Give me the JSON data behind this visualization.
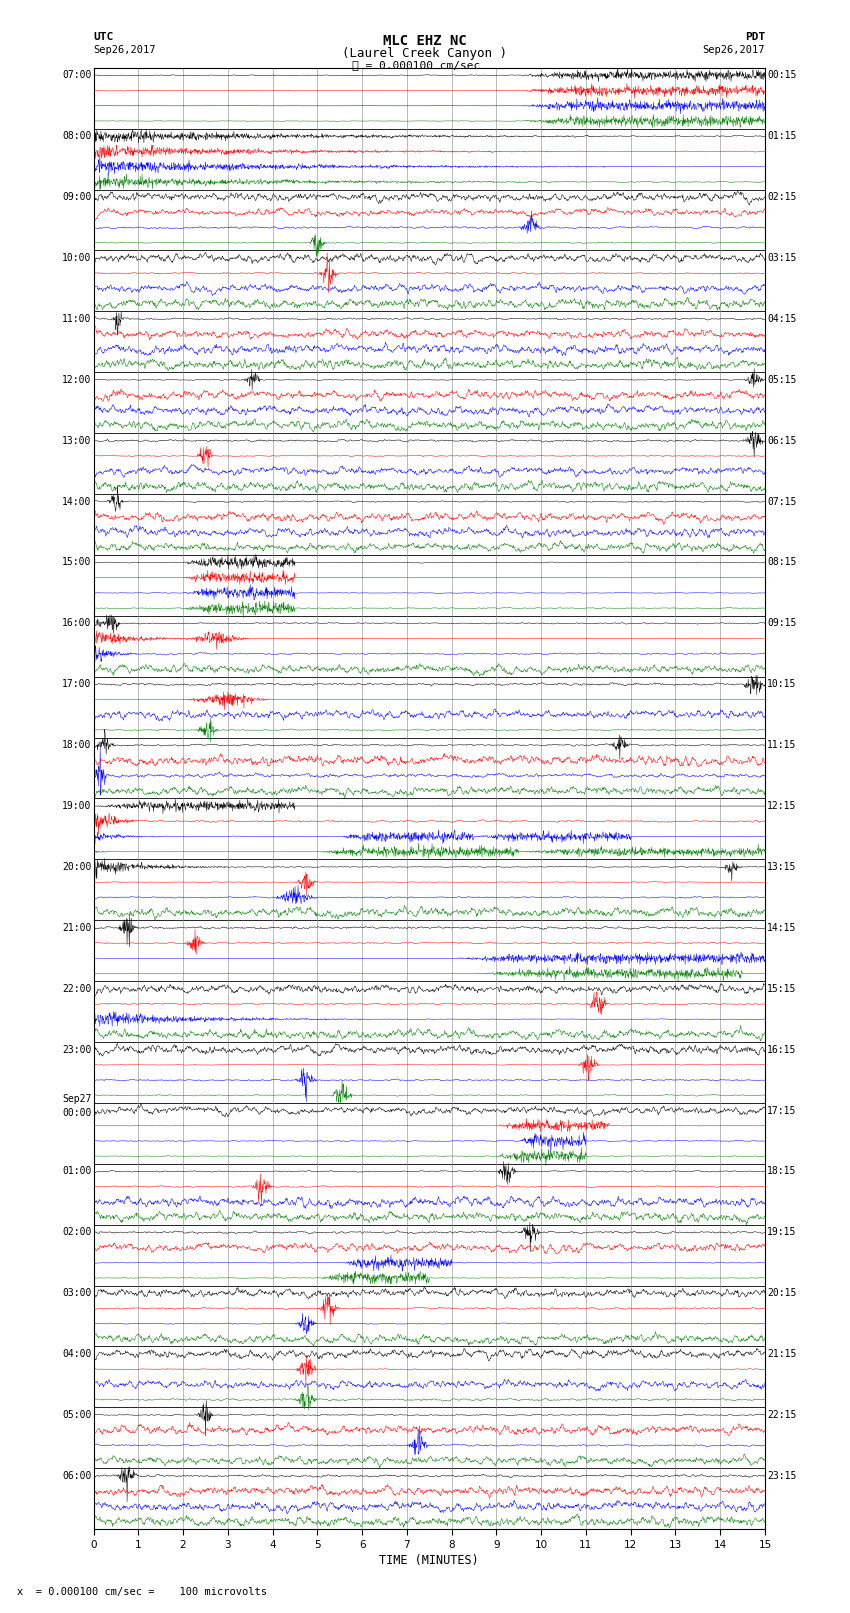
{
  "title_line1": "MLC EHZ NC",
  "title_line2": "(Laurel Creek Canyon )",
  "scale_text": "= 0.000100 cm/sec",
  "label_text": "x  = 0.000100 cm/sec =    100 microvolts",
  "utc_label": "UTC",
  "utc_date": "Sep26,2017",
  "pdt_label": "PDT",
  "pdt_date": "Sep26,2017",
  "xlabel": "TIME (MINUTES)",
  "xmin": 0,
  "xmax": 15,
  "colors": [
    "black",
    "red",
    "blue",
    "green"
  ],
  "bg_color": "#ffffff",
  "n_rows": 96,
  "left_times_utc": [
    "07:00",
    "08:00",
    "09:00",
    "10:00",
    "11:00",
    "12:00",
    "13:00",
    "14:00",
    "15:00",
    "16:00",
    "17:00",
    "18:00",
    "19:00",
    "20:00",
    "21:00",
    "22:00",
    "23:00",
    "Sep27\n00:00",
    "01:00",
    "02:00",
    "03:00",
    "04:00",
    "05:00",
    "06:00"
  ],
  "right_times_pdt": [
    "00:15",
    "01:15",
    "02:15",
    "03:15",
    "04:15",
    "05:15",
    "06:15",
    "07:15",
    "08:15",
    "09:15",
    "10:15",
    "11:15",
    "12:15",
    "13:15",
    "14:15",
    "15:15",
    "16:15",
    "17:15",
    "18:15",
    "19:15",
    "20:15",
    "21:15",
    "22:15",
    "23:15"
  ],
  "n_hours": 24,
  "seed": 42
}
